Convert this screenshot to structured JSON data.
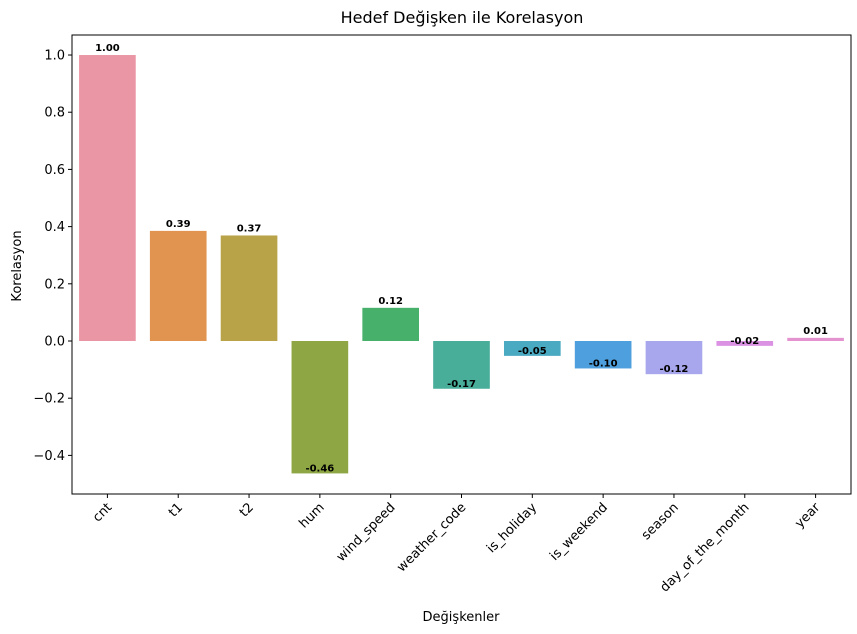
{
  "chart_data": {
    "type": "bar",
    "title": "Hedef Değişken ile Korelasyon",
    "xlabel": "Değişkenler",
    "ylabel": "Korelasyon",
    "categories": [
      "cnt",
      "t1",
      "t2",
      "hum",
      "wind_speed",
      "weather_code",
      "is_holiday",
      "is_weekend",
      "season",
      "day_of_the_month",
      "year"
    ],
    "values": [
      1.0,
      0.385,
      0.369,
      -0.463,
      0.116,
      -0.167,
      -0.052,
      -0.096,
      -0.116,
      -0.017,
      0.011
    ],
    "value_labels": [
      "1.00",
      "0.39",
      "0.37",
      "-0.46",
      "0.12",
      "-0.17",
      "-0.05",
      "-0.10",
      "-0.12",
      "-0.02",
      "0.01"
    ],
    "colors": [
      "#eb96a4",
      "#e0944f",
      "#b8a349",
      "#8ea744",
      "#47b06a",
      "#48ad99",
      "#4aaac2",
      "#4e9fdd",
      "#a8a6ec",
      "#db92e2",
      "#e493d0"
    ],
    "ylim": [
      -0.535,
      1.07
    ],
    "yticks": [
      -0.4,
      -0.2,
      0.0,
      0.2,
      0.4,
      0.6,
      0.8,
      1.0
    ],
    "ytick_labels": [
      "−0.4",
      "−0.2",
      "0.0",
      "0.2",
      "0.4",
      "0.6",
      "0.8",
      "1.0"
    ],
    "grid": false,
    "legend": "none"
  }
}
